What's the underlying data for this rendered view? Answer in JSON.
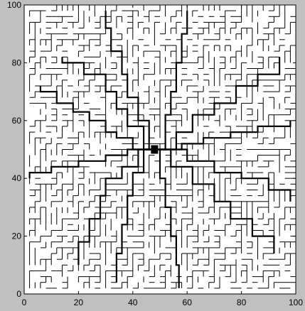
{
  "chart_data": {
    "type": "line",
    "title": "",
    "xlabel": "",
    "ylabel": "",
    "xlim": [
      0,
      100
    ],
    "ylim": [
      0,
      100
    ],
    "xticks": [
      0,
      20,
      40,
      60,
      80,
      100
    ],
    "yticks": [
      0,
      20,
      40,
      60,
      80,
      100
    ],
    "grid": false,
    "description_kind": "drainage-tree network on a 100x100 lattice",
    "center": [
      48,
      50
    ],
    "colors": {
      "figure_background": "#c0c0c0",
      "axes_background": "#ffffff",
      "edges": "#000000"
    },
    "main_branches": [
      {
        "name": "branch-nw-1",
        "points": [
          [
            48,
            50
          ],
          [
            40,
            54
          ],
          [
            34,
            56
          ],
          [
            30,
            60
          ],
          [
            24,
            63
          ],
          [
            18,
            66
          ],
          [
            12,
            70
          ],
          [
            6,
            72
          ]
        ]
      },
      {
        "name": "branch-nw-2",
        "points": [
          [
            48,
            50
          ],
          [
            44,
            58
          ],
          [
            38,
            64
          ],
          [
            34,
            70
          ],
          [
            30,
            76
          ],
          [
            22,
            80
          ],
          [
            14,
            82
          ]
        ]
      },
      {
        "name": "branch-n-1",
        "points": [
          [
            48,
            50
          ],
          [
            46,
            60
          ],
          [
            42,
            68
          ],
          [
            38,
            76
          ],
          [
            36,
            84
          ],
          [
            32,
            92
          ],
          [
            30,
            98
          ]
        ]
      },
      {
        "name": "branch-n-2",
        "points": [
          [
            48,
            50
          ],
          [
            52,
            62
          ],
          [
            54,
            70
          ],
          [
            56,
            80
          ],
          [
            58,
            90
          ],
          [
            60,
            98
          ]
        ]
      },
      {
        "name": "branch-ne-1",
        "points": [
          [
            48,
            50
          ],
          [
            56,
            56
          ],
          [
            62,
            62
          ],
          [
            70,
            66
          ],
          [
            78,
            72
          ],
          [
            86,
            76
          ],
          [
            94,
            82
          ]
        ]
      },
      {
        "name": "branch-e-1",
        "points": [
          [
            48,
            50
          ],
          [
            58,
            52
          ],
          [
            66,
            54
          ],
          [
            76,
            56
          ],
          [
            86,
            58
          ],
          [
            98,
            60
          ]
        ]
      },
      {
        "name": "branch-e-2",
        "points": [
          [
            48,
            50
          ],
          [
            60,
            46
          ],
          [
            70,
            42
          ],
          [
            80,
            40
          ],
          [
            90,
            36
          ],
          [
            98,
            32
          ]
        ]
      },
      {
        "name": "branch-se-1",
        "points": [
          [
            48,
            50
          ],
          [
            54,
            44
          ],
          [
            62,
            38
          ],
          [
            70,
            32
          ],
          [
            76,
            26
          ],
          [
            84,
            20
          ],
          [
            92,
            14
          ]
        ]
      },
      {
        "name": "branch-s-1",
        "points": [
          [
            48,
            50
          ],
          [
            50,
            40
          ],
          [
            52,
            30
          ],
          [
            54,
            20
          ],
          [
            56,
            10
          ],
          [
            57,
            2
          ]
        ]
      },
      {
        "name": "branch-sw-1",
        "points": [
          [
            48,
            50
          ],
          [
            42,
            44
          ],
          [
            36,
            40
          ],
          [
            30,
            34
          ],
          [
            28,
            26
          ],
          [
            24,
            18
          ],
          [
            20,
            10
          ]
        ]
      },
      {
        "name": "branch-w-1",
        "points": [
          [
            48,
            50
          ],
          [
            38,
            48
          ],
          [
            30,
            46
          ],
          [
            20,
            44
          ],
          [
            10,
            42
          ],
          [
            2,
            40
          ]
        ]
      },
      {
        "name": "branch-sw-2",
        "points": [
          [
            48,
            50
          ],
          [
            44,
            42
          ],
          [
            40,
            34
          ],
          [
            38,
            24
          ],
          [
            36,
            14
          ],
          [
            34,
            4
          ]
        ]
      }
    ]
  }
}
